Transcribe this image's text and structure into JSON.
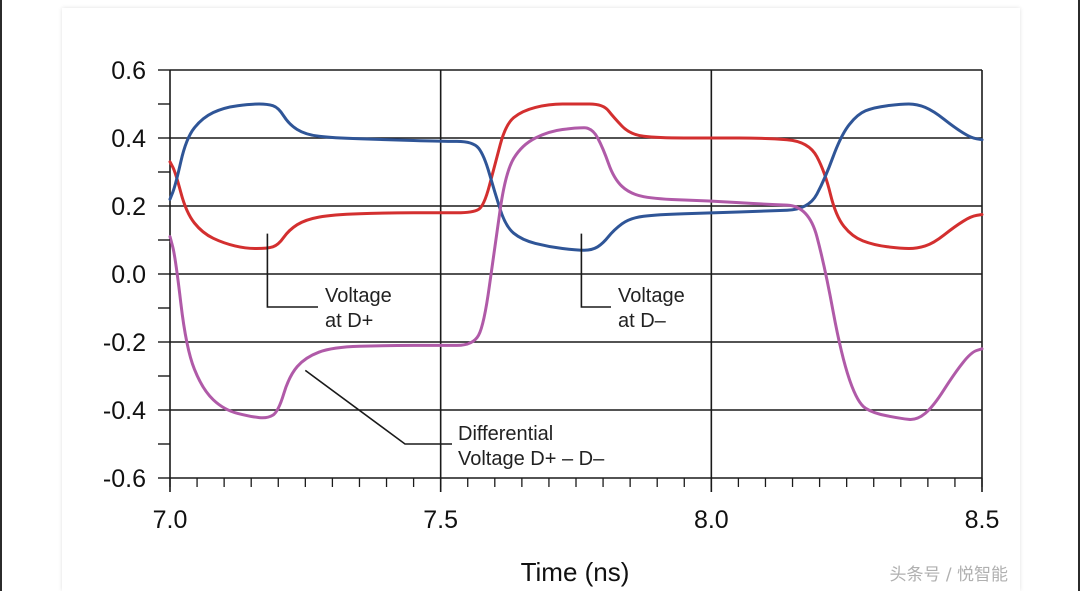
{
  "colors": {
    "d_plus": "#d32f2f",
    "d_minus": "#2f5597",
    "differential": "#b05aa8",
    "grid": "#1a1a1a",
    "leader": "#1a1a1a"
  },
  "chart_data": {
    "type": "line",
    "title": "",
    "xlabel": "Time (ns)",
    "ylabel": "",
    "xlim": [
      7.0,
      8.5
    ],
    "ylim": [
      -0.6,
      0.6
    ],
    "x_ticks": [
      "7.0",
      "7.5",
      "8.0",
      "8.5"
    ],
    "y_ticks": [
      "0.6",
      "0.4",
      "0.2",
      "0.0",
      "-0.2",
      "-0.4",
      "-0.6"
    ],
    "grid": true,
    "series": [
      {
        "name": "Voltage at D+",
        "color": "#d32f2f",
        "x": [
          7.0,
          7.01,
          7.03,
          7.06,
          7.1,
          7.14,
          7.18,
          7.2,
          7.22,
          7.25,
          7.3,
          7.4,
          7.5,
          7.56,
          7.58,
          7.6,
          7.62,
          7.65,
          7.7,
          7.75,
          7.8,
          7.82,
          7.85,
          7.9,
          8.0,
          8.1,
          8.18,
          8.21,
          8.23,
          8.26,
          8.3,
          8.35,
          8.38,
          8.41,
          8.45,
          8.48,
          8.5
        ],
        "y": [
          0.33,
          0.3,
          0.18,
          0.12,
          0.09,
          0.075,
          0.075,
          0.085,
          0.13,
          0.16,
          0.175,
          0.18,
          0.18,
          0.18,
          0.2,
          0.32,
          0.44,
          0.48,
          0.5,
          0.5,
          0.5,
          0.46,
          0.41,
          0.4,
          0.4,
          0.4,
          0.39,
          0.3,
          0.17,
          0.11,
          0.085,
          0.075,
          0.075,
          0.09,
          0.14,
          0.17,
          0.175
        ]
      },
      {
        "name": "Voltage at D–",
        "color": "#2f5597",
        "x": [
          7.0,
          7.01,
          7.03,
          7.06,
          7.1,
          7.15,
          7.18,
          7.2,
          7.22,
          7.25,
          7.3,
          7.4,
          7.5,
          7.56,
          7.58,
          7.6,
          7.62,
          7.65,
          7.7,
          7.75,
          7.78,
          7.8,
          7.82,
          7.85,
          7.9,
          8.0,
          8.1,
          8.18,
          8.21,
          8.24,
          8.27,
          8.3,
          8.35,
          8.38,
          8.41,
          8.45,
          8.48,
          8.5
        ],
        "y": [
          0.22,
          0.26,
          0.4,
          0.46,
          0.49,
          0.5,
          0.5,
          0.49,
          0.44,
          0.41,
          0.4,
          0.395,
          0.39,
          0.39,
          0.35,
          0.24,
          0.14,
          0.1,
          0.08,
          0.07,
          0.07,
          0.09,
          0.13,
          0.165,
          0.175,
          0.18,
          0.185,
          0.19,
          0.28,
          0.41,
          0.47,
          0.49,
          0.5,
          0.5,
          0.48,
          0.43,
          0.4,
          0.395
        ]
      },
      {
        "name": "Differential Voltage D+ – D–",
        "color": "#b05aa8",
        "x": [
          7.0,
          7.01,
          7.03,
          7.06,
          7.1,
          7.15,
          7.18,
          7.2,
          7.22,
          7.25,
          7.3,
          7.4,
          7.5,
          7.56,
          7.58,
          7.6,
          7.62,
          7.65,
          7.7,
          7.75,
          7.78,
          7.8,
          7.82,
          7.85,
          7.9,
          8.0,
          8.1,
          8.18,
          8.21,
          8.24,
          8.27,
          8.3,
          8.35,
          8.38,
          8.41,
          8.45,
          8.48,
          8.5
        ],
        "y": [
          0.11,
          0.05,
          -0.22,
          -0.34,
          -0.4,
          -0.42,
          -0.425,
          -0.405,
          -0.3,
          -0.245,
          -0.215,
          -0.21,
          -0.21,
          -0.21,
          -0.15,
          0.08,
          0.3,
          0.38,
          0.42,
          0.43,
          0.43,
          0.37,
          0.28,
          0.235,
          0.22,
          0.215,
          0.205,
          0.2,
          0.02,
          -0.24,
          -0.38,
          -0.41,
          -0.425,
          -0.43,
          -0.39,
          -0.29,
          -0.23,
          -0.22
        ]
      }
    ],
    "annotations": [
      {
        "lines": [
          "Voltage",
          "at D+"
        ],
        "target": [
          7.18,
          0.06
        ]
      },
      {
        "lines": [
          "Voltage",
          "at D–"
        ],
        "target": [
          7.76,
          0.06
        ]
      },
      {
        "lines": [
          "Differential",
          "Voltage D+ – D–"
        ],
        "target": [
          7.25,
          -0.26
        ]
      }
    ]
  },
  "watermark": "头条号 / 悦智能"
}
